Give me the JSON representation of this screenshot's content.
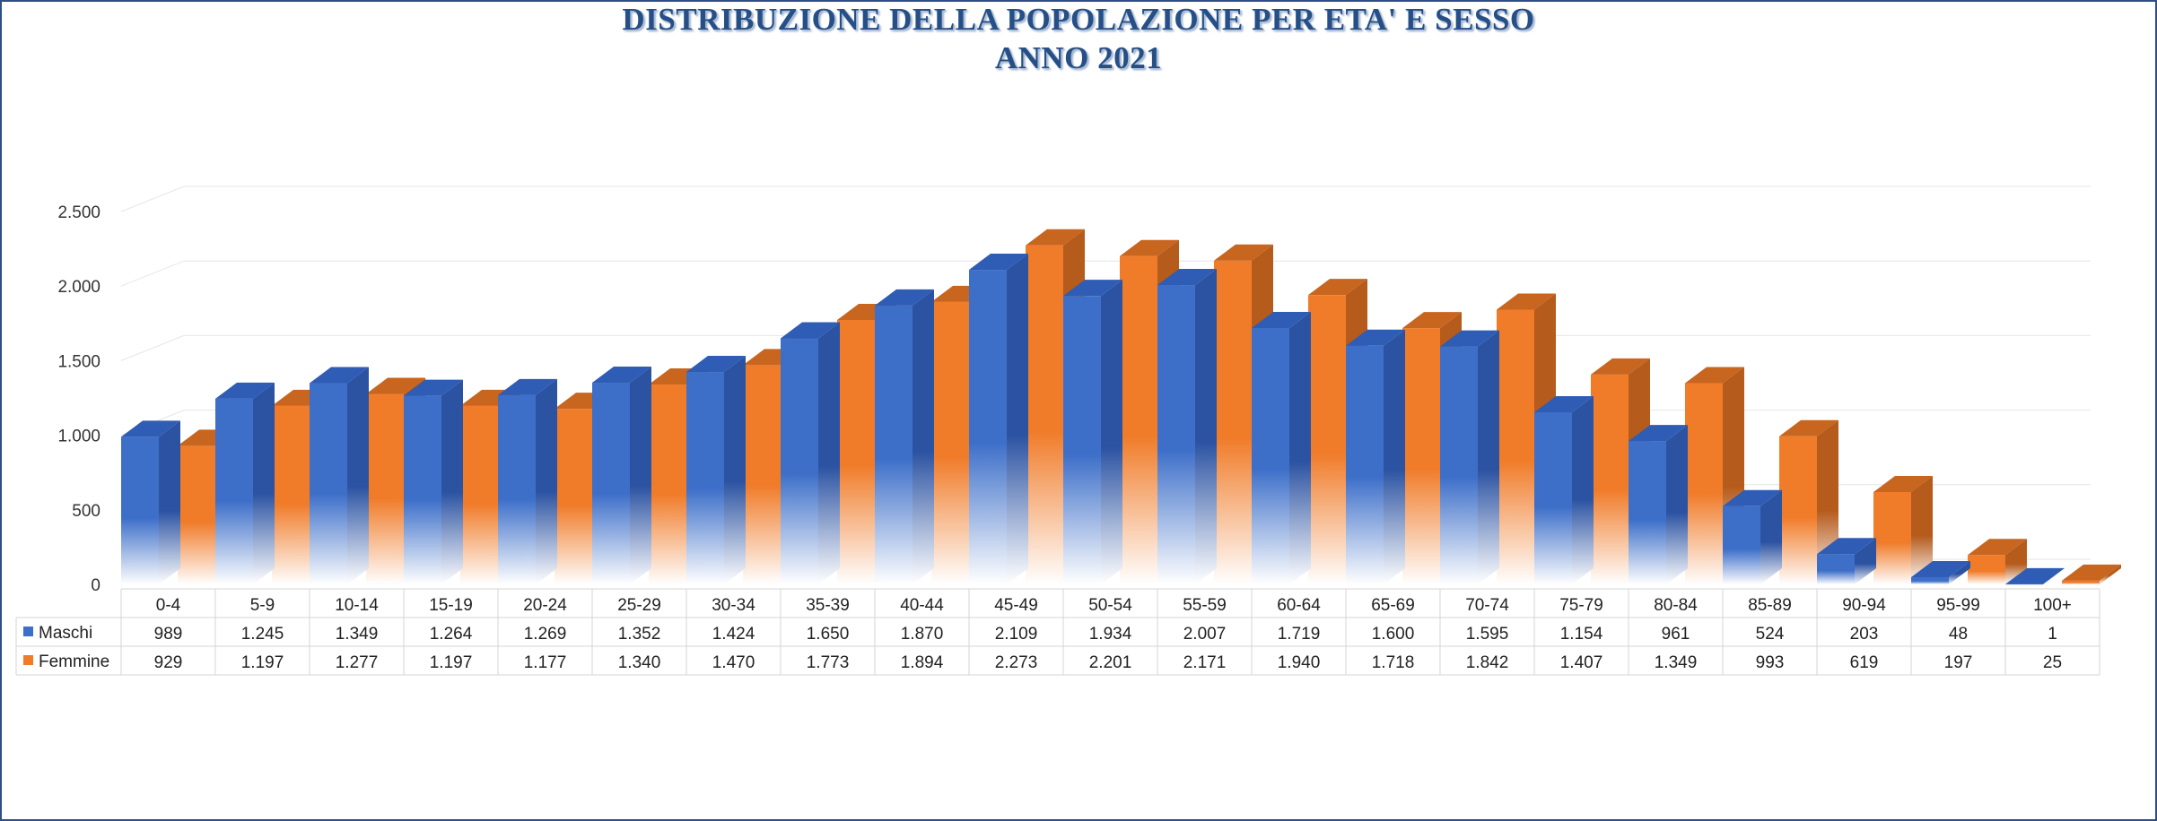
{
  "chart_data": {
    "type": "bar",
    "title": "DISTRIBUZIONE DELLA POPOLAZIONE PER ETA' E SESSO",
    "subtitle": "ANNO 2021",
    "categories": [
      "0-4",
      "5-9",
      "10-14",
      "15-19",
      "20-24",
      "25-29",
      "30-34",
      "35-39",
      "40-44",
      "45-49",
      "50-54",
      "55-59",
      "60-64",
      "65-69",
      "70-74",
      "75-79",
      "80-84",
      "85-89",
      "90-94",
      "95-99",
      "100+"
    ],
    "series": [
      {
        "name": "Maschi",
        "color": "#3d6fc9",
        "values": [
          989,
          1245,
          1349,
          1264,
          1269,
          1352,
          1424,
          1650,
          1870,
          2109,
          1934,
          2007,
          1719,
          1600,
          1595,
          1154,
          961,
          524,
          203,
          48,
          1
        ],
        "labels": [
          "989",
          "1.245",
          "1.349",
          "1.264",
          "1.269",
          "1.352",
          "1.424",
          "1.650",
          "1.870",
          "2.109",
          "1.934",
          "2.007",
          "1.719",
          "1.600",
          "1.595",
          "1.154",
          "961",
          "524",
          "203",
          "48",
          "1"
        ]
      },
      {
        "name": "Femmine",
        "color": "#f07c2a",
        "values": [
          929,
          1197,
          1277,
          1197,
          1177,
          1340,
          1470,
          1773,
          1894,
          2273,
          2201,
          2171,
          1940,
          1718,
          1842,
          1407,
          1349,
          993,
          619,
          197,
          25
        ],
        "labels": [
          "929",
          "1.197",
          "1.277",
          "1.197",
          "1.177",
          "1.340",
          "1.470",
          "1.773",
          "1.894",
          "2.273",
          "2.201",
          "2.171",
          "1.940",
          "1.718",
          "1.842",
          "1.407",
          "1.349",
          "993",
          "619",
          "197",
          "25"
        ]
      }
    ],
    "yticks": [
      0,
      500,
      1000,
      1500,
      2000,
      2500
    ],
    "ytick_labels": [
      "0",
      "500",
      "1.000",
      "1.500",
      "2.000",
      "2.500"
    ],
    "ylim": [
      0,
      2700
    ],
    "grid": true,
    "legend": "data-table",
    "xlabel": "",
    "ylabel": ""
  }
}
